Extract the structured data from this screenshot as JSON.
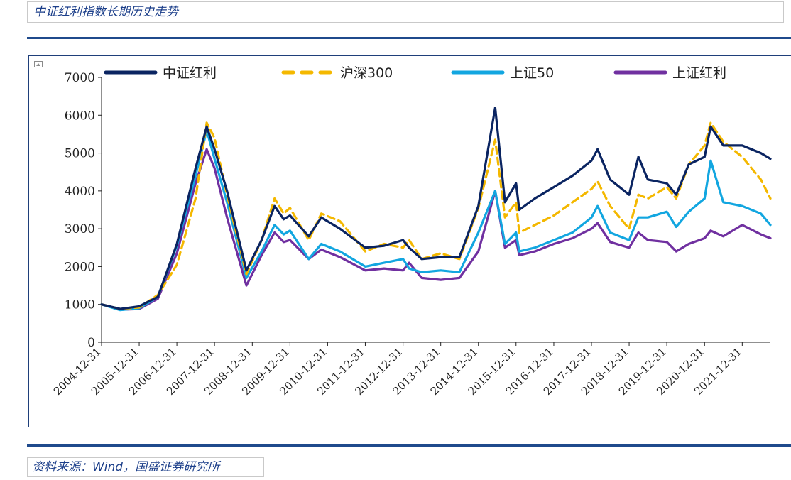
{
  "header": {
    "title": "中证红利指数长期历史走势"
  },
  "footer": {
    "source": "资料来源：Wind，国盛证券研究所"
  },
  "chart_data": {
    "type": "line",
    "title": "",
    "xlabel": "",
    "ylabel": "",
    "ylim": [
      0,
      7000
    ],
    "yticks": [
      "0",
      "1000",
      "2000",
      "3000",
      "4000",
      "5000",
      "6000",
      "7000"
    ],
    "x_tick_labels": [
      "2004-12-31",
      "2005-12-31",
      "2006-12-31",
      "2007-12-31",
      "2008-12-31",
      "2009-12-31",
      "2010-12-31",
      "2011-12-31",
      "2012-12-31",
      "2013-12-31",
      "2014-12-31",
      "2015-12-31",
      "2016-12-31",
      "2017-12-31",
      "2018-12-31",
      "2019-12-31",
      "2020-12-31",
      "2021-12-31"
    ],
    "x_range": [
      "2004-12-31",
      "2022-09-30"
    ],
    "grid": false,
    "legend_position": "top",
    "x": [
      "2004-12-31",
      "2005-06-30",
      "2005-12-31",
      "2006-06-30",
      "2006-12-31",
      "2007-06-30",
      "2007-10-16",
      "2007-12-31",
      "2008-04-30",
      "2008-11-04",
      "2009-03-31",
      "2009-08-04",
      "2009-10-31",
      "2009-12-31",
      "2010-07-01",
      "2010-10-31",
      "2011-04-30",
      "2011-12-31",
      "2012-06-30",
      "2012-12-31",
      "2013-02-28",
      "2013-06-30",
      "2013-12-31",
      "2014-06-30",
      "2014-12-31",
      "2015-06-12",
      "2015-09-15",
      "2015-12-31",
      "2016-01-31",
      "2016-06-30",
      "2016-12-31",
      "2017-06-30",
      "2017-12-31",
      "2018-02-28",
      "2018-06-30",
      "2018-12-31",
      "2019-03-31",
      "2019-06-30",
      "2019-12-31",
      "2020-03-31",
      "2020-07-31",
      "2020-12-31",
      "2021-02-28",
      "2021-06-30",
      "2021-12-31",
      "2022-06-30",
      "2022-09-30"
    ],
    "series": [
      {
        "name": "中证红利",
        "color": "#0a2461",
        "dash": "solid",
        "values": [
          1000,
          880,
          950,
          1200,
          2600,
          4600,
          5700,
          5100,
          4000,
          1900,
          2700,
          3600,
          3250,
          3350,
          2800,
          3300,
          3000,
          2500,
          2550,
          2700,
          2500,
          2200,
          2250,
          2250,
          3600,
          6200,
          3700,
          4200,
          3500,
          3800,
          4100,
          4400,
          4800,
          5100,
          4300,
          3900,
          4900,
          4300,
          4200,
          3900,
          4700,
          4900,
          5700,
          5200,
          5200,
          5000,
          4850
        ]
      },
      {
        "name": "沪深300",
        "color": "#f4b800",
        "dash": "dashed",
        "values": [
          1000,
          880,
          920,
          1250,
          2050,
          3800,
          5800,
          5400,
          3900,
          1800,
          2700,
          3800,
          3400,
          3550,
          2700,
          3400,
          3200,
          2400,
          2600,
          2500,
          2700,
          2200,
          2350,
          2200,
          3550,
          5350,
          3300,
          3700,
          2900,
          3100,
          3350,
          3700,
          4050,
          4250,
          3600,
          3000,
          3900,
          3800,
          4100,
          3800,
          4700,
          5200,
          5800,
          5300,
          4900,
          4300,
          3800
        ]
      },
      {
        "name": "上证50",
        "color": "#12a6e0",
        "dash": "solid",
        "values": [
          1000,
          850,
          900,
          1200,
          2550,
          4400,
          5600,
          4850,
          3700,
          1700,
          2400,
          3100,
          2850,
          2950,
          2200,
          2600,
          2400,
          2000,
          2100,
          2200,
          1950,
          1850,
          1900,
          1850,
          2900,
          4000,
          2600,
          2900,
          2400,
          2500,
          2700,
          2900,
          3300,
          3600,
          2900,
          2700,
          3300,
          3300,
          3450,
          3050,
          3450,
          3800,
          4800,
          3700,
          3600,
          3400,
          3100
        ]
      },
      {
        "name": "上证红利",
        "color": "#7030a0",
        "dash": "solid",
        "values": [
          1000,
          860,
          880,
          1150,
          2350,
          4200,
          5100,
          4600,
          3300,
          1500,
          2300,
          2900,
          2650,
          2700,
          2200,
          2450,
          2250,
          1900,
          1950,
          1900,
          2100,
          1700,
          1650,
          1700,
          2400,
          4000,
          2500,
          2700,
          2300,
          2400,
          2600,
          2750,
          3000,
          3150,
          2650,
          2500,
          2900,
          2700,
          2650,
          2400,
          2600,
          2750,
          2950,
          2800,
          3100,
          2850,
          2750
        ]
      }
    ]
  }
}
